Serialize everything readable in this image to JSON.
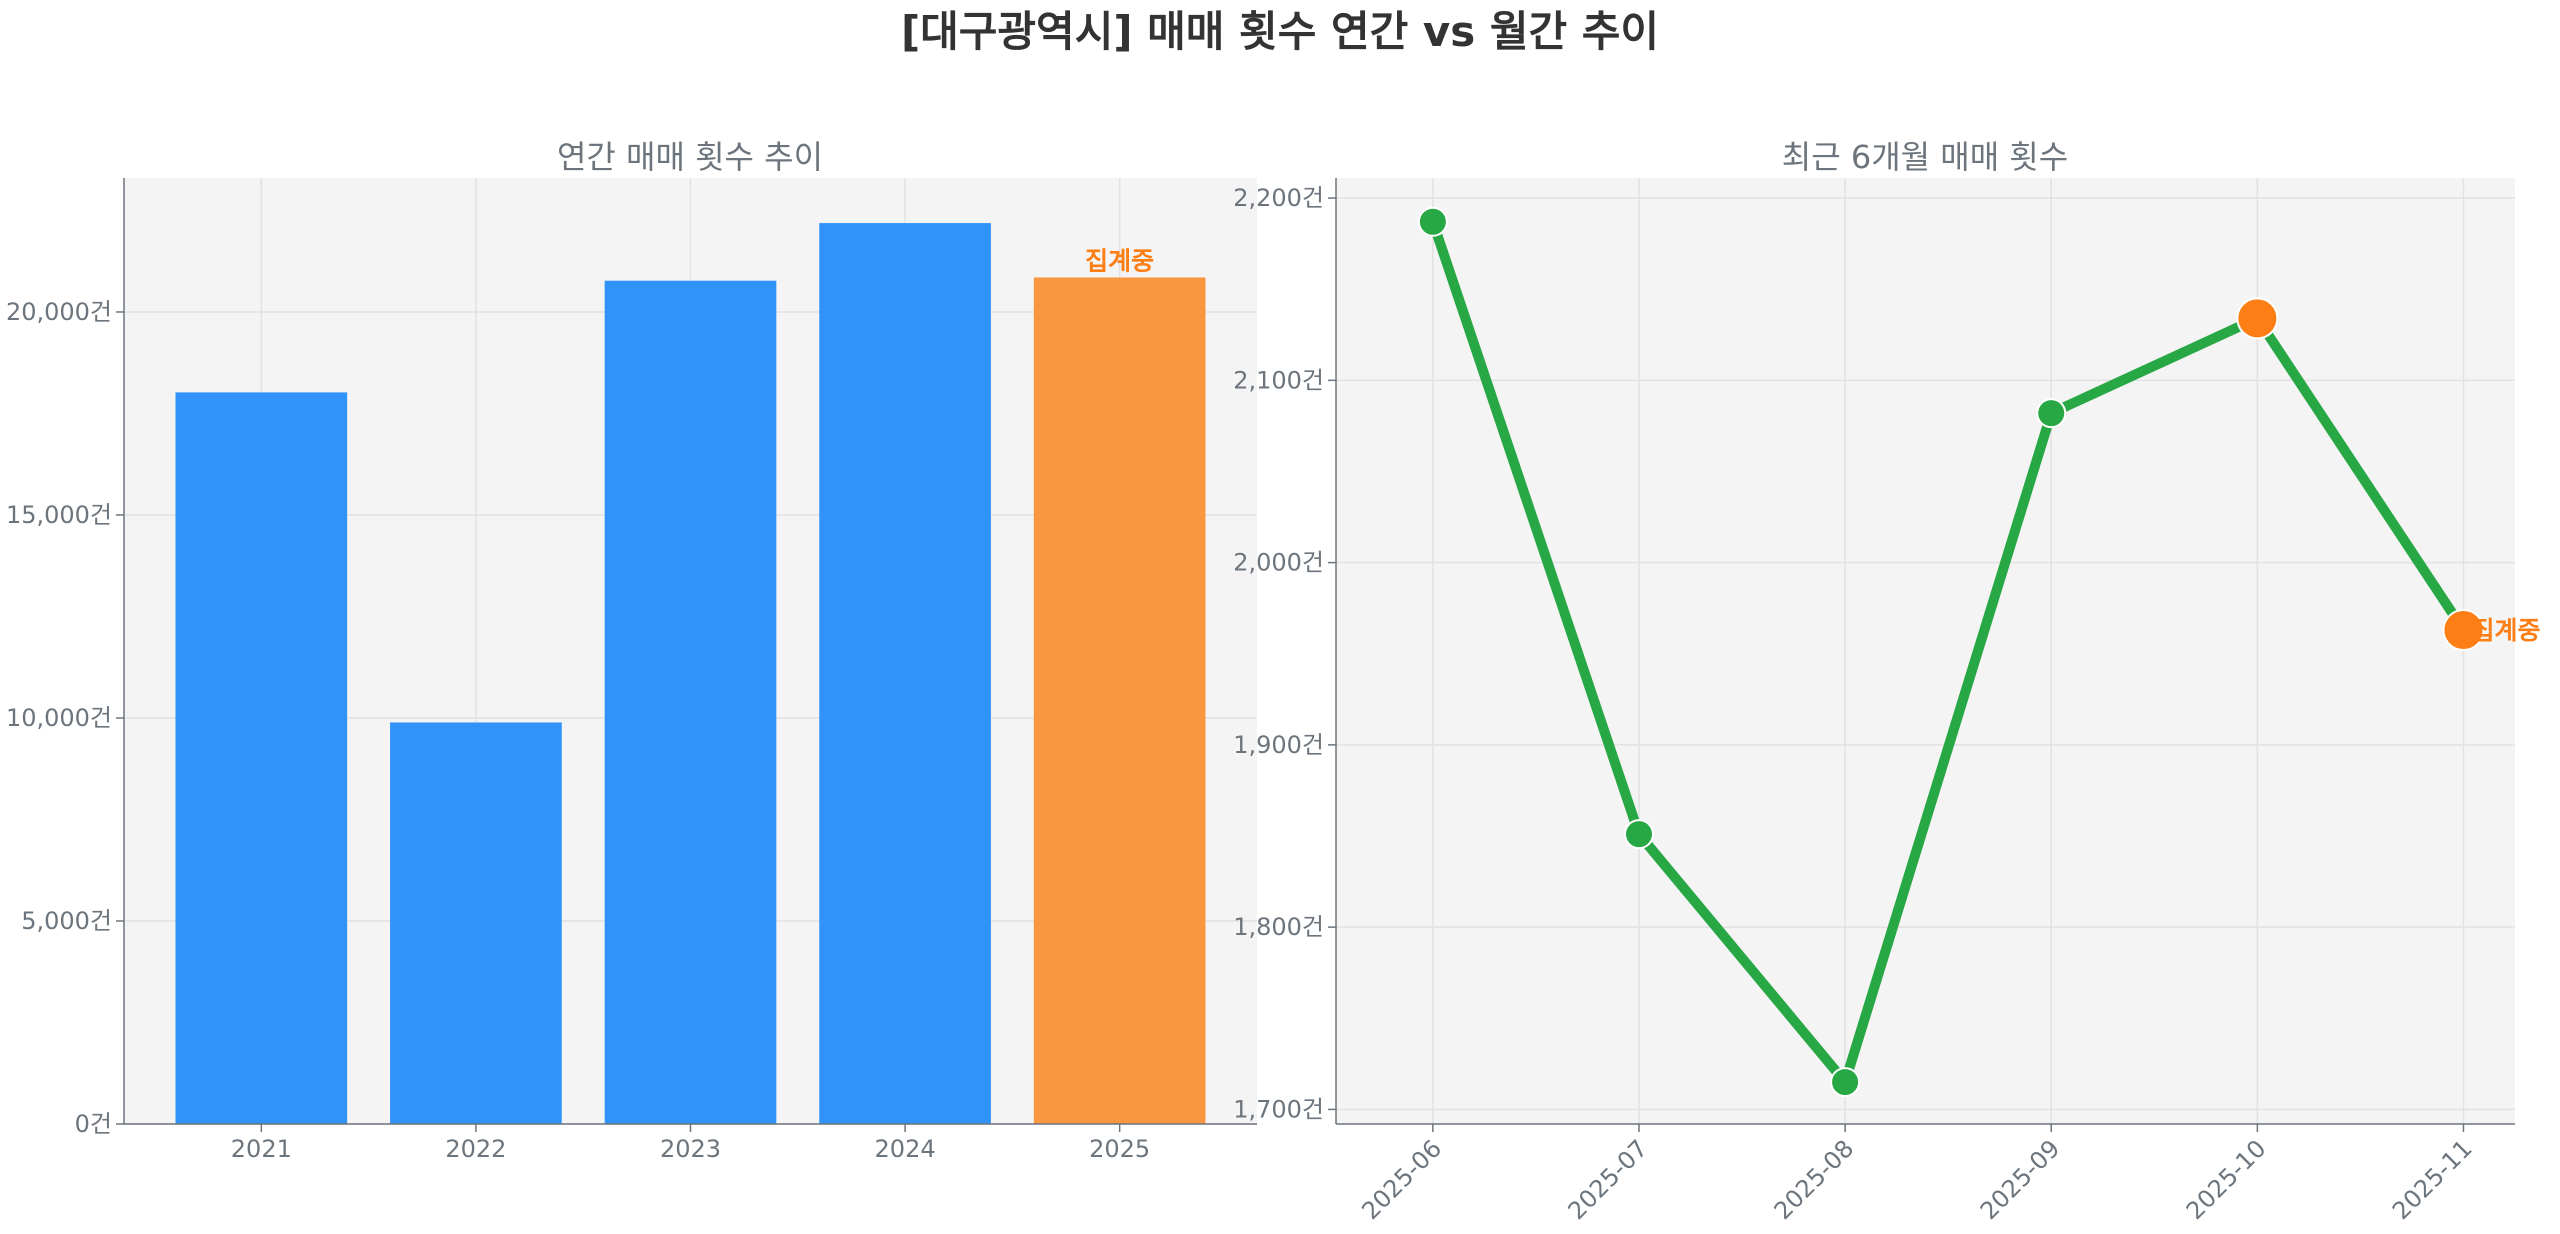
{
  "title": "[대구광역시] 매매 횟수 연간 vs 월간 추이",
  "colors": {
    "bar": "#3093fa",
    "bar_partial": "#f99740",
    "line": "#28a745",
    "marker_partial": "#fd7e14",
    "text": "#6c757d",
    "background": "#f4f4f4"
  },
  "chart_data": [
    {
      "type": "bar",
      "title": "연간 매매 횟수 추이",
      "categories": [
        "2021",
        "2022",
        "2023",
        "2024",
        "2025"
      ],
      "values": [
        18020,
        9890,
        20770,
        22190,
        20850
      ],
      "partial_flags": [
        false,
        false,
        false,
        false,
        true
      ],
      "annotation": "집계중",
      "ylim": [
        0,
        23300
      ],
      "yticks": [
        0,
        5000,
        10000,
        15000,
        20000
      ],
      "ytick_labels": [
        "0건",
        "5,000건",
        "10,000건",
        "15,000건",
        "20,000건"
      ],
      "grid": true
    },
    {
      "type": "line",
      "title": "최근 6개월 매매 횟수",
      "categories": [
        "2025-06",
        "2025-07",
        "2025-08",
        "2025-09",
        "2025-10",
        "2025-11"
      ],
      "values": [
        2187,
        1851,
        1715,
        2082,
        2134,
        1963
      ],
      "highlight_flags": [
        false,
        false,
        false,
        false,
        true,
        true
      ],
      "annotation": "집계중",
      "ylim": [
        1692,
        2211
      ],
      "yticks": [
        1700,
        1800,
        1900,
        2000,
        2100,
        2200
      ],
      "ytick_labels": [
        "1,700건",
        "1,800건",
        "1,900건",
        "2,000건",
        "2,100건",
        "2,200건"
      ],
      "grid": true
    }
  ]
}
